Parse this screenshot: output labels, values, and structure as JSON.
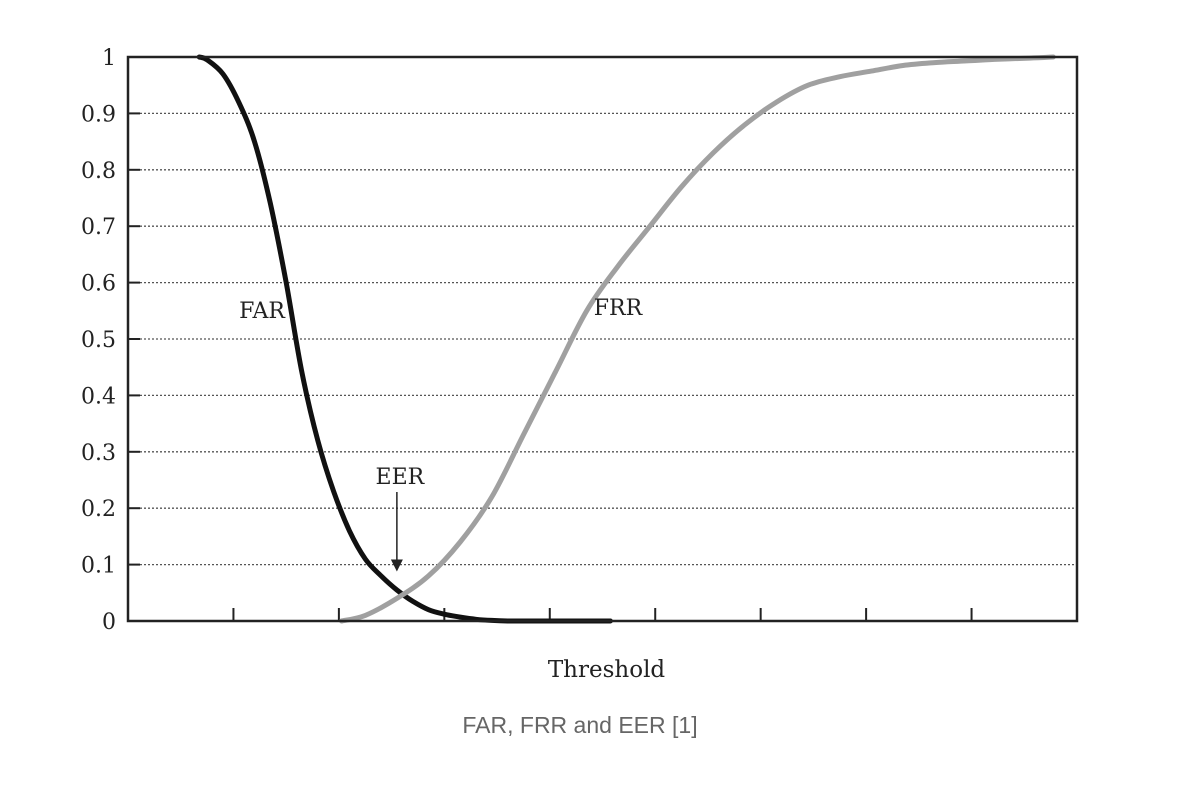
{
  "chart_data": {
    "type": "line",
    "title": "",
    "xlabel": "Threshold",
    "ylabel": "",
    "ylim": [
      0,
      1
    ],
    "yticks": [
      "0",
      "0.1",
      "0.2",
      "0.3",
      "0.4",
      "0.5",
      "0.6",
      "0.7",
      "0.8",
      "0.9",
      "1"
    ],
    "xtick_count": 9,
    "grid": "horizontal-dotted",
    "series": [
      {
        "name": "FAR",
        "color": "#111111",
        "x": [
          0.9,
          1.0,
          1.2,
          1.4,
          1.6,
          1.8,
          2.0,
          2.2,
          2.4,
          2.6,
          2.8,
          3.0,
          3.2,
          3.4,
          3.6,
          3.8,
          4.0,
          4.2,
          4.4,
          4.6,
          4.8,
          5.0,
          5.2,
          5.4,
          5.6,
          5.8,
          6.1
        ],
        "y": [
          1.0,
          0.995,
          0.97,
          0.92,
          0.85,
          0.74,
          0.6,
          0.44,
          0.32,
          0.23,
          0.16,
          0.11,
          0.08,
          0.055,
          0.035,
          0.02,
          0.012,
          0.007,
          0.003,
          0.001,
          0.0,
          0.0,
          0.0,
          0.0,
          0.0,
          0.0,
          0.0
        ]
      },
      {
        "name": "FRR",
        "color": "#a0a0a0",
        "x": [
          2.7,
          3.0,
          3.4,
          3.8,
          4.2,
          4.6,
          5.0,
          5.4,
          5.8,
          6.2,
          6.6,
          7.0,
          7.4,
          7.8,
          8.2,
          8.6,
          9.0,
          9.4,
          9.8,
          10.2,
          10.6,
          11.0,
          11.4,
          11.7
        ],
        "y": [
          0.0,
          0.01,
          0.04,
          0.08,
          0.14,
          0.22,
          0.33,
          0.44,
          0.55,
          0.63,
          0.7,
          0.77,
          0.83,
          0.88,
          0.92,
          0.95,
          0.965,
          0.975,
          0.985,
          0.99,
          0.993,
          0.996,
          0.998,
          1.0
        ]
      }
    ],
    "xlim": [
      0,
      12
    ],
    "annotations": [
      {
        "text": "EER",
        "x": 3.4,
        "y": 0.07
      }
    ],
    "caption": "FAR, FRR and EER [1]"
  }
}
